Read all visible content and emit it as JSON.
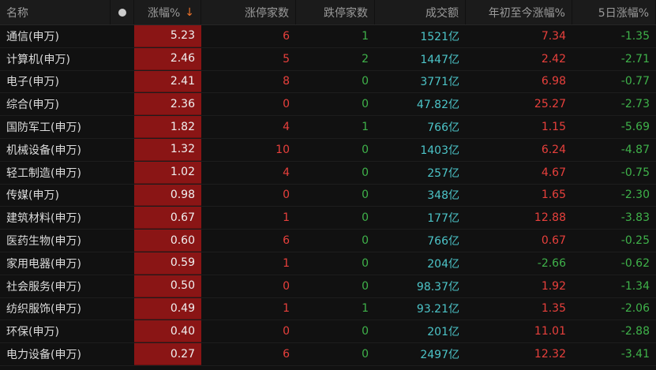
{
  "header": {
    "name": "名称",
    "change": "涨幅%",
    "sort_icon": "arrow-down",
    "limit_up": "涨停家数",
    "limit_down": "跌停家数",
    "turnover": "成交额",
    "ytd": "年初至今涨幅%",
    "five_day": "5日涨幅%"
  },
  "colors": {
    "up": "#e8403c",
    "down": "#3fb24a",
    "turnover": "#4cc4c8",
    "highlight_bg": "#8a1515"
  },
  "rows": [
    {
      "name": "通信(申万)",
      "change": "5.23",
      "limit_up": "6",
      "limit_down": "1",
      "turnover": "1521亿",
      "ytd": "7.34",
      "five_day": "-1.35"
    },
    {
      "name": "计算机(申万)",
      "change": "2.46",
      "limit_up": "5",
      "limit_down": "2",
      "turnover": "1447亿",
      "ytd": "2.42",
      "five_day": "-2.71"
    },
    {
      "name": "电子(申万)",
      "change": "2.41",
      "limit_up": "8",
      "limit_down": "0",
      "turnover": "3771亿",
      "ytd": "6.98",
      "five_day": "-0.77"
    },
    {
      "name": "综合(申万)",
      "change": "2.36",
      "limit_up": "0",
      "limit_down": "0",
      "turnover": "47.82亿",
      "ytd": "25.27",
      "five_day": "-2.73"
    },
    {
      "name": "国防军工(申万)",
      "change": "1.82",
      "limit_up": "4",
      "limit_down": "1",
      "turnover": "766亿",
      "ytd": "1.15",
      "five_day": "-5.69"
    },
    {
      "name": "机械设备(申万)",
      "change": "1.32",
      "limit_up": "10",
      "limit_down": "0",
      "turnover": "1403亿",
      "ytd": "6.24",
      "five_day": "-4.87"
    },
    {
      "name": "轻工制造(申万)",
      "change": "1.02",
      "limit_up": "4",
      "limit_down": "0",
      "turnover": "257亿",
      "ytd": "4.67",
      "five_day": "-0.75"
    },
    {
      "name": "传媒(申万)",
      "change": "0.98",
      "limit_up": "0",
      "limit_down": "0",
      "turnover": "348亿",
      "ytd": "1.65",
      "five_day": "-2.30"
    },
    {
      "name": "建筑材料(申万)",
      "change": "0.67",
      "limit_up": "1",
      "limit_down": "0",
      "turnover": "177亿",
      "ytd": "12.88",
      "five_day": "-3.83"
    },
    {
      "name": "医药生物(申万)",
      "change": "0.60",
      "limit_up": "6",
      "limit_down": "0",
      "turnover": "766亿",
      "ytd": "0.67",
      "five_day": "-0.25"
    },
    {
      "name": "家用电器(申万)",
      "change": "0.59",
      "limit_up": "1",
      "limit_down": "0",
      "turnover": "204亿",
      "ytd": "-2.66",
      "five_day": "-0.62"
    },
    {
      "name": "社会服务(申万)",
      "change": "0.50",
      "limit_up": "0",
      "limit_down": "0",
      "turnover": "98.37亿",
      "ytd": "1.92",
      "five_day": "-1.34"
    },
    {
      "name": "纺织服饰(申万)",
      "change": "0.49",
      "limit_up": "1",
      "limit_down": "1",
      "turnover": "93.21亿",
      "ytd": "1.35",
      "five_day": "-2.06"
    },
    {
      "name": "环保(申万)",
      "change": "0.40",
      "limit_up": "0",
      "limit_down": "0",
      "turnover": "201亿",
      "ytd": "11.01",
      "five_day": "-2.88"
    },
    {
      "name": "电力设备(申万)",
      "change": "0.27",
      "limit_up": "6",
      "limit_down": "0",
      "turnover": "2497亿",
      "ytd": "12.32",
      "five_day": "-3.41"
    }
  ]
}
